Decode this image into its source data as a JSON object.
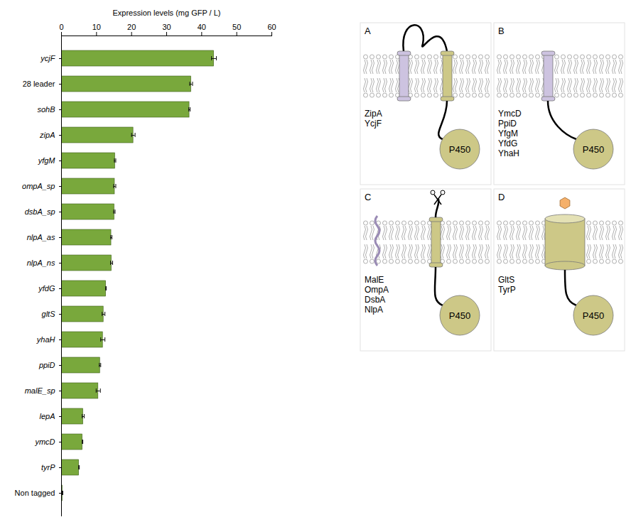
{
  "chart_data": {
    "type": "bar",
    "orientation": "horizontal",
    "xlabel": "Expression levels (mg GFP / L)",
    "categories": [
      "ycjF",
      "28 leader",
      "sohB",
      "zipA",
      "yfgM",
      "ompA_sp",
      "dsbA_sp",
      "nlpA_as",
      "nlpA_ns",
      "yfdG",
      "gltS",
      "yhaH",
      "ppiD",
      "malE_sp",
      "lepA",
      "ymcD",
      "tyrP",
      "Non tagged"
    ],
    "values": [
      43.5,
      37,
      36.5,
      20.5,
      15.3,
      15.2,
      15.1,
      14.2,
      14.3,
      12.7,
      12,
      11.8,
      11,
      10.5,
      6.2,
      6,
      5,
      0.3
    ],
    "errors": [
      0.7,
      0.4,
      0.2,
      0.5,
      0.2,
      0.3,
      0.2,
      0.2,
      0.3,
      0.1,
      0.4,
      0.6,
      0.2,
      0.6,
      0.3,
      0.1,
      0.1,
      0.1
    ],
    "color": "#79a83c",
    "xlim": [
      0,
      60
    ],
    "xticks": [
      0,
      10,
      20,
      30,
      40,
      50,
      60
    ]
  },
  "diagram": {
    "domain_label": "P450",
    "panels": [
      {
        "label": "A",
        "proteins": [
          "ZipA",
          "YcjF"
        ]
      },
      {
        "label": "B",
        "proteins": [
          "YmcD",
          "PpiD",
          "YfgM",
          "YfdG",
          "YhaH"
        ]
      },
      {
        "label": "C",
        "proteins": [
          "MalE",
          "OmpA",
          "DsbA",
          "NlpA"
        ]
      },
      {
        "label": "D",
        "proteins": [
          "GltS",
          "TyrP"
        ]
      }
    ]
  }
}
